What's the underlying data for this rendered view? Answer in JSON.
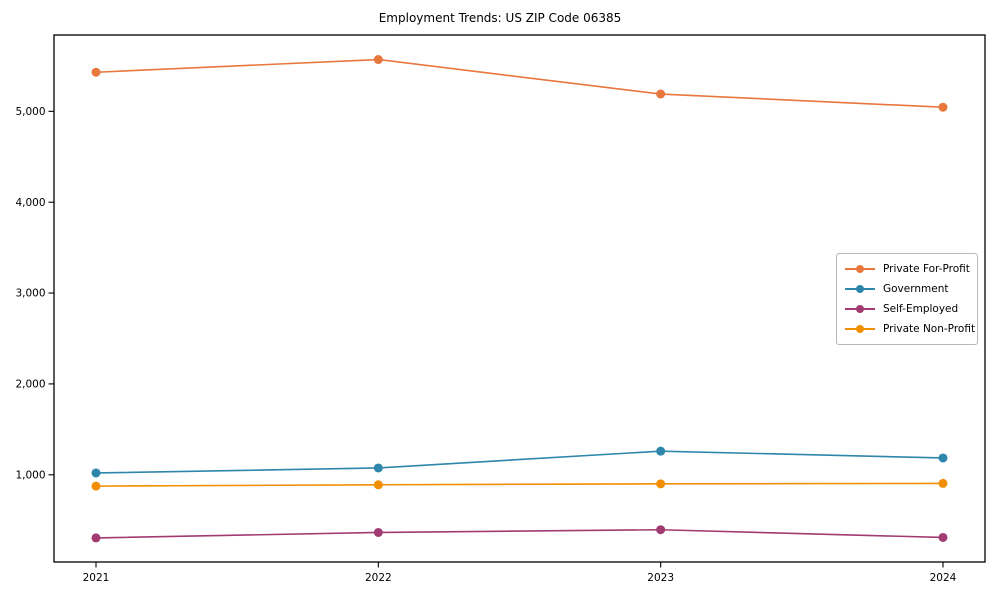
{
  "title": "Employment Trends: US ZIP Code 06385",
  "chart_data": {
    "type": "line",
    "title": "Employment Trends: US ZIP Code 06385",
    "xlabel": "",
    "ylabel": "",
    "categories": [
      "2021",
      "2022",
      "2023",
      "2024"
    ],
    "series": [
      {
        "name": "Private For-Profit",
        "color": "#e8773d",
        "values": [
          5430,
          5570,
          5190,
          5045
        ]
      },
      {
        "name": "Government",
        "color": "#2e86ab",
        "values": [
          1020,
          1075,
          1260,
          1185
        ]
      },
      {
        "name": "Self-Employed",
        "color": "#a23b72",
        "values": [
          305,
          365,
          395,
          310
        ]
      },
      {
        "name": "Private Non-Profit",
        "color": "#f18f01",
        "values": [
          875,
          890,
          900,
          905
        ]
      }
    ],
    "yticks": [
      1000,
      2000,
      3000,
      4000,
      5000
    ],
    "ytick_labels": [
      "1,000",
      "2,000",
      "3,000",
      "4,000",
      "5,000"
    ],
    "ylim": [
      40,
      5840
    ],
    "grid": false,
    "legend_position": "center right",
    "marker": "circle",
    "line_width": 1.6,
    "marker_radius": 4.5
  }
}
